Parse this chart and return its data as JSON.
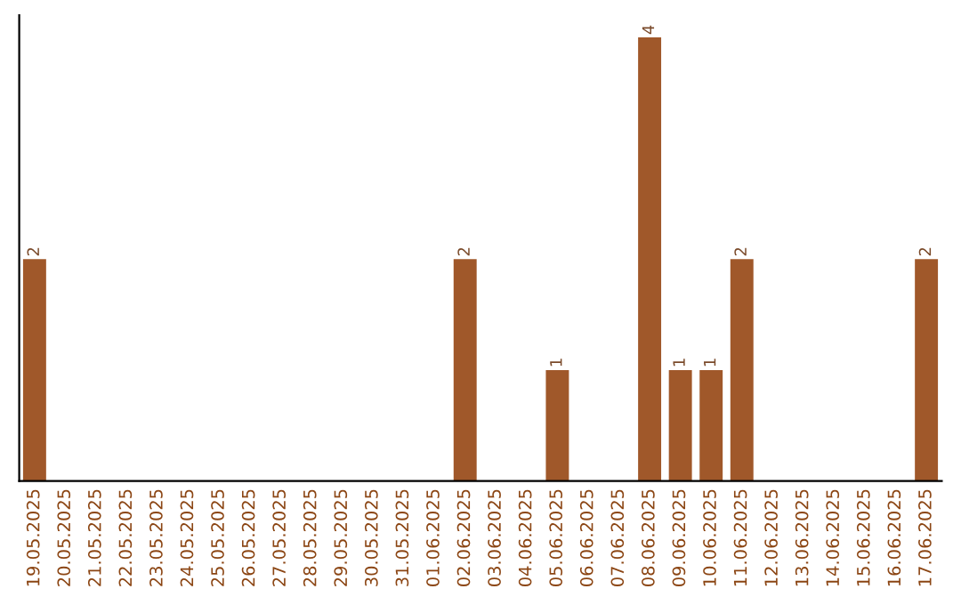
{
  "chart_data": {
    "type": "bar",
    "categories": [
      "19.05.2025",
      "20.05.2025",
      "21.05.2025",
      "22.05.2025",
      "23.05.2025",
      "24.05.2025",
      "25.05.2025",
      "26.05.2025",
      "27.05.2025",
      "28.05.2025",
      "29.05.2025",
      "30.05.2025",
      "31.05.2025",
      "01.06.2025",
      "02.06.2025",
      "03.06.2025",
      "04.06.2025",
      "05.06.2025",
      "06.06.2025",
      "07.06.2025",
      "08.06.2025",
      "09.06.2025",
      "10.06.2025",
      "11.06.2025",
      "12.06.2025",
      "13.06.2025",
      "14.06.2025",
      "15.06.2025",
      "16.06.2025",
      "17.06.2025"
    ],
    "values": [
      2,
      0,
      0,
      0,
      0,
      0,
      0,
      0,
      0,
      0,
      0,
      0,
      0,
      0,
      2,
      0,
      0,
      1,
      0,
      0,
      4,
      1,
      1,
      2,
      0,
      0,
      0,
      0,
      0,
      2
    ],
    "value_labels": [
      "2",
      null,
      null,
      null,
      null,
      null,
      null,
      null,
      null,
      null,
      null,
      null,
      null,
      null,
      "2",
      null,
      null,
      "1",
      null,
      null,
      "4",
      "1",
      "1",
      "2",
      null,
      null,
      null,
      null,
      null,
      "2"
    ],
    "color": "#a0582a",
    "tick_labels": "x",
    "grid": false,
    "legend": false
  }
}
